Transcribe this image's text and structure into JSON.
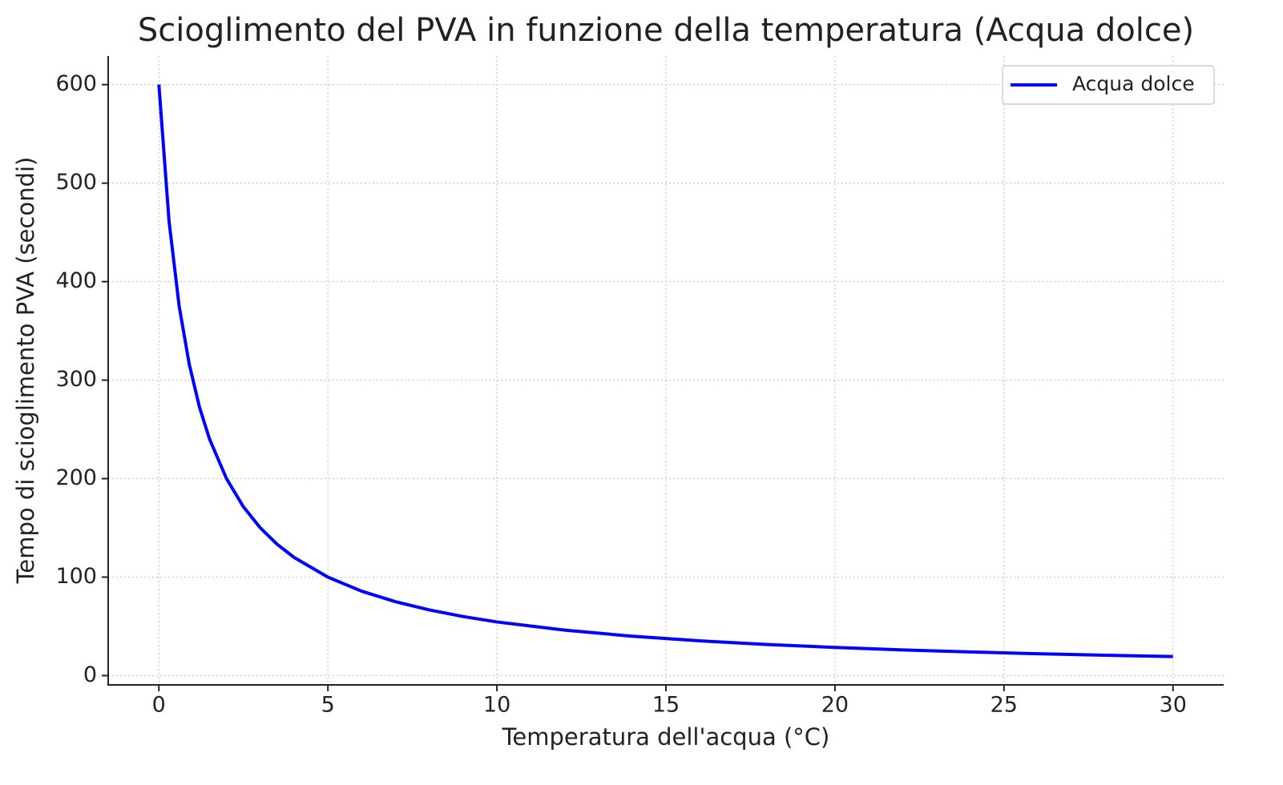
{
  "chart_data": {
    "type": "line",
    "title": "Scioglimento del PVA in funzione della temperatura (Acqua dolce)",
    "x_label": "Temperatura dell'acqua (°C)",
    "y_label": "Tempo di scioglimento PVA (secondi)",
    "x": [
      0,
      0.3,
      0.6,
      0.9,
      1.2,
      1.5,
      2,
      2.5,
      3,
      3.5,
      4,
      5,
      6,
      7,
      8,
      9,
      10,
      12,
      14,
      16,
      18,
      20,
      22,
      24,
      26,
      28,
      30
    ],
    "series": [
      {
        "name": "Acqua dolce",
        "color": "#0000ff",
        "values": [
          600,
          461.5,
          375,
          315.8,
          272.7,
          240,
          200,
          171.4,
          150,
          133.3,
          120,
          100,
          85.7,
          75,
          66.7,
          60,
          54.5,
          46.2,
          40,
          35.3,
          31.6,
          28.6,
          26.1,
          24,
          22.2,
          20.7,
          19.4
        ]
      }
    ],
    "xlim": [
      -1.5,
      31.5
    ],
    "xticks": [
      0,
      5,
      10,
      15,
      20,
      25,
      30
    ],
    "ylim": [
      -9.4,
      629
    ],
    "yticks": [
      0,
      100,
      200,
      300,
      400,
      500,
      600
    ],
    "grid": true,
    "legend": "upper right"
  }
}
